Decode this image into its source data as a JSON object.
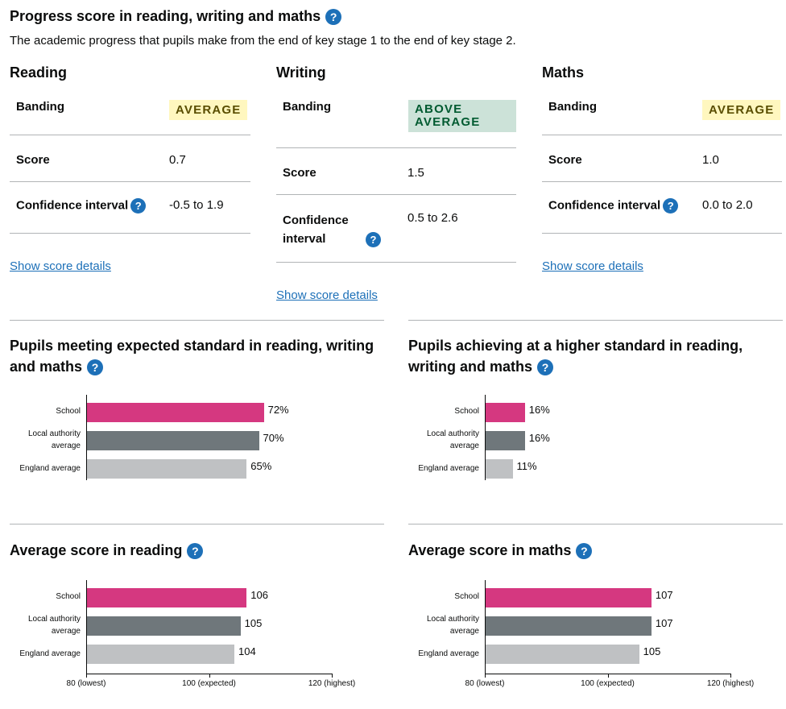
{
  "title": "Progress score in reading, writing and maths",
  "description": "The academic progress that pupils make from the end of key stage 1 to the end of key stage 2.",
  "help_symbol": "?",
  "progress": [
    {
      "subject": "Reading",
      "banding_label": "Banding",
      "banding": "AVERAGE",
      "score_label": "Score",
      "score": "0.7",
      "ci_label": "Confidence interval",
      "ci": "-0.5 to 1.9",
      "link": "Show score details"
    },
    {
      "subject": "Writing",
      "banding_label": "Banding",
      "banding": "ABOVE AVERAGE",
      "score_label": "Score",
      "score": "1.5",
      "ci_label": "Confidence interval",
      "ci": "0.5 to 2.6",
      "link": "Show score details"
    },
    {
      "subject": "Maths",
      "banding_label": "Banding",
      "banding": "AVERAGE",
      "score_label": "Score",
      "score": "1.0",
      "ci_label": "Confidence interval",
      "ci": "0.0 to 2.0",
      "link": "Show score details"
    }
  ],
  "colors": {
    "school": "#d53880",
    "local_authority": "#6f777b",
    "england": "#bfc1c3",
    "link": "#1d70b8"
  },
  "chart_titles": [
    "Pupils meeting expected standard in reading, writing and maths",
    "Pupils achieving at a higher standard in reading, writing and maths",
    "Average score in reading",
    "Average score in maths"
  ],
  "chart_data": [
    {
      "type": "bar",
      "orientation": "horizontal",
      "title": "Pupils meeting expected standard in reading, writing and maths",
      "categories": [
        "School",
        "Local authority average",
        "England average"
      ],
      "values": [
        72,
        70,
        65
      ],
      "value_labels": [
        "72%",
        "70%",
        "65%"
      ],
      "xlim": [
        0,
        100
      ],
      "grid": false
    },
    {
      "type": "bar",
      "orientation": "horizontal",
      "title": "Pupils achieving at a higher standard in reading, writing and maths",
      "categories": [
        "School",
        "Local authority average",
        "England average"
      ],
      "values": [
        16,
        16,
        11
      ],
      "value_labels": [
        "16%",
        "16%",
        "11%"
      ],
      "xlim": [
        0,
        100
      ],
      "grid": false
    },
    {
      "type": "bar",
      "orientation": "horizontal",
      "title": "Average score in reading",
      "categories": [
        "School",
        "Local authority average",
        "England average"
      ],
      "values": [
        106,
        105,
        104
      ],
      "value_labels": [
        "106",
        "105",
        "104"
      ],
      "xlim": [
        80,
        120
      ],
      "xticks": [
        80,
        100,
        120
      ],
      "xtick_labels": [
        "80 (lowest)",
        "100 (expected)",
        "120 (highest)"
      ],
      "grid": false
    },
    {
      "type": "bar",
      "orientation": "horizontal",
      "title": "Average score in maths",
      "categories": [
        "School",
        "Local authority average",
        "England average"
      ],
      "values": [
        107,
        107,
        105
      ],
      "value_labels": [
        "107",
        "107",
        "105"
      ],
      "xlim": [
        80,
        120
      ],
      "xticks": [
        80,
        100,
        120
      ],
      "xtick_labels": [
        "80 (lowest)",
        "100 (expected)",
        "120 (highest)"
      ],
      "grid": false
    }
  ]
}
